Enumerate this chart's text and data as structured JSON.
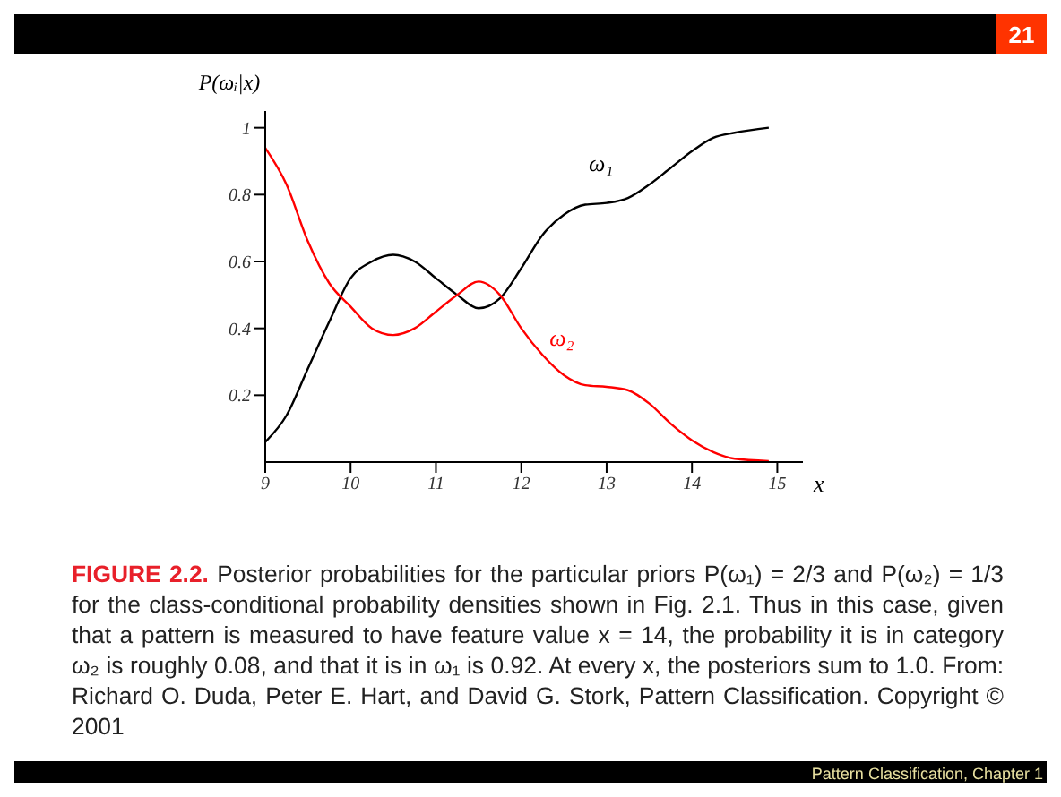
{
  "chart_data": {
    "type": "line",
    "xlabel": "x",
    "ylabel": "P(ωᵢ|x)",
    "x": [
      9,
      9.25,
      9.5,
      9.75,
      10,
      10.25,
      10.5,
      10.75,
      11,
      11.25,
      11.5,
      11.75,
      12,
      12.25,
      12.5,
      12.75,
      13,
      13.25,
      13.5,
      13.75,
      14,
      14.25,
      14.5,
      14.9
    ],
    "series": [
      {
        "name": "ω₁",
        "color": "#000000",
        "values": [
          0.06,
          0.14,
          0.28,
          0.42,
          0.55,
          0.6,
          0.62,
          0.6,
          0.55,
          0.5,
          0.46,
          0.49,
          0.58,
          0.68,
          0.74,
          0.77,
          0.775,
          0.79,
          0.83,
          0.88,
          0.93,
          0.97,
          0.985,
          1.0
        ]
      },
      {
        "name": "ω₂",
        "color": "#ff0000",
        "values": [
          0.94,
          0.83,
          0.66,
          0.535,
          0.465,
          0.4,
          0.38,
          0.4,
          0.45,
          0.5,
          0.54,
          0.5,
          0.4,
          0.32,
          0.26,
          0.23,
          0.225,
          0.215,
          0.175,
          0.115,
          0.065,
          0.03,
          0.01,
          0.003
        ]
      }
    ],
    "xlim": [
      9,
      15.3
    ],
    "xticks": [
      9,
      10,
      11,
      12,
      13,
      14,
      15
    ],
    "ylim": [
      0,
      1.05
    ],
    "yticks": [
      0.2,
      0.4,
      0.6,
      0.8,
      1
    ],
    "grid": false,
    "legend": false,
    "marker": "none",
    "line_style": "solid",
    "annotations": [
      "21",
      "FIGURE 2.2.",
      "Posterior probabilities for the particular priors P(ω₁) = 2/3 and P(ω₂) = 1/3 for the class-conditional probability densities shown in Fig. 2.1. Thus in this case, given that a pattern is measured to have feature value x = 14, the probability it is in category ω₂ is roughly 0.08, and that it is in ω₁ is 0.92. At every x, the posteriors sum to 1.0. From: Richard O. Duda, Peter E. Hart, and David G. Stork, Pattern Classification. Copyright © 2001",
      "Pattern Classification, Chapter 1"
    ]
  }
}
